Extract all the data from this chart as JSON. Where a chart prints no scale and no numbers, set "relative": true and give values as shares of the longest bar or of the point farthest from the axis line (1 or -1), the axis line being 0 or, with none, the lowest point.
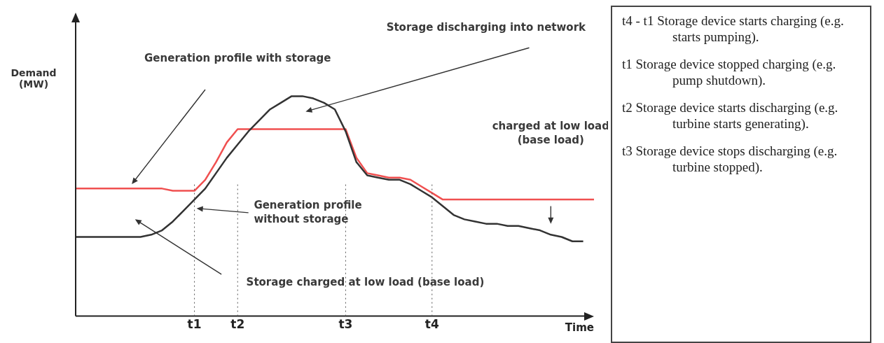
{
  "chart_data": {
    "type": "line",
    "relative": true,
    "ylabel": "Demand (MW)",
    "xlabel": "Time",
    "categories": [
      null,
      null,
      null,
      null,
      null,
      null,
      null,
      null,
      null,
      null,
      null,
      "t1",
      null,
      null,
      null,
      "t2",
      null,
      null,
      null,
      null,
      null,
      null,
      null,
      null,
      null,
      "t3",
      null,
      null,
      null,
      null,
      null,
      null,
      null,
      "t4",
      null,
      null,
      null,
      null,
      null,
      null,
      null,
      null,
      null,
      null,
      null,
      null,
      null,
      null,
      null
    ],
    "series": [
      {
        "color": "#333333",
        "values": [
          0.36,
          0.36,
          0.36,
          0.36,
          0.36,
          0.36,
          0.36,
          0.37,
          0.39,
          0.43,
          0.48,
          0.53,
          0.58,
          0.65,
          0.72,
          0.78,
          0.84,
          0.89,
          0.94,
          0.97,
          1.0,
          1.0,
          0.99,
          0.97,
          0.94,
          0.84,
          0.7,
          0.64,
          0.63,
          0.62,
          0.62,
          0.6,
          0.57,
          0.54,
          0.5,
          0.46,
          0.44,
          0.43,
          0.42,
          0.42,
          0.41,
          0.41,
          0.4,
          0.39,
          0.37,
          0.36,
          0.34,
          0.34,
          null
        ]
      },
      {
        "color": "#f05050",
        "values": [
          0.58,
          0.58,
          0.58,
          0.58,
          0.58,
          0.58,
          0.58,
          0.58,
          0.58,
          0.57,
          0.57,
          0.57,
          0.62,
          0.7,
          0.79,
          0.85,
          0.85,
          0.85,
          0.85,
          0.85,
          0.85,
          0.85,
          0.85,
          0.85,
          0.85,
          0.85,
          0.72,
          0.65,
          0.64,
          0.63,
          0.63,
          0.62,
          0.59,
          0.56,
          0.53,
          0.53,
          0.53,
          0.53,
          0.53,
          0.53,
          0.53,
          0.53,
          0.53,
          0.53,
          0.53,
          0.53,
          0.53,
          0.53,
          0.53
        ]
      }
    ],
    "ref_lines": [
      {
        "axis": "x",
        "value": "t1",
        "line_style": "dotted"
      },
      {
        "axis": "x",
        "value": "t2",
        "line_style": "dotted"
      },
      {
        "axis": "x",
        "value": "t3",
        "line_style": "dotted"
      },
      {
        "axis": "x",
        "value": "t4",
        "line_style": "dotted"
      }
    ],
    "annotations": [
      "Generation profile with storage",
      "Storage discharging into network",
      "charged at low load (base load)",
      "Generation profile without storage",
      "Storage charged at low load (base load)",
      "t4 - t1 Storage device  starts charging  (e.g. starts pumping).",
      "t1 Storage device stopped charging (e.g. pump shutdown).",
      "t2 Storage device starts discharging (e.g. turbine starts generating).",
      "t3 Storage device stops discharging (e.g. turbine stopped)."
    ],
    "legend": false,
    "grid": false,
    "marker": "none",
    "line_style": "solid"
  }
}
